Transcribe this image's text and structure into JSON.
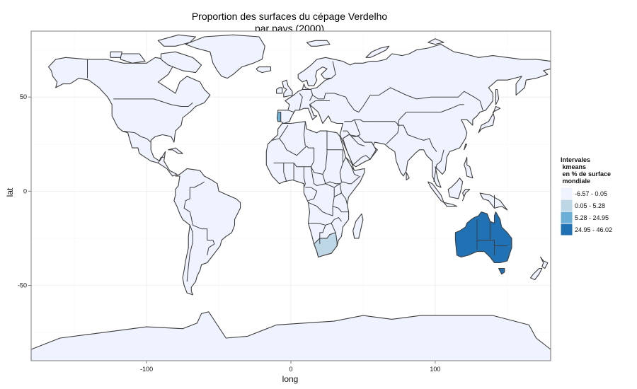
{
  "chart_data": {
    "type": "choropleth-map",
    "title_line1": "Proportion des surfaces du cépage Verdelho",
    "title_line2": "par pays (2000)",
    "xlabel": "long",
    "ylabel": "lat",
    "xlim": [
      -180,
      180
    ],
    "ylim": [
      -90,
      85
    ],
    "xticks": [
      -100,
      0,
      100
    ],
    "yticks": [
      -50,
      0,
      50
    ],
    "grid": true,
    "legend": {
      "position": "right",
      "title_lines": [
        "Intervales",
        " kmeans",
        " en % de surface",
        " mondiale"
      ],
      "classes": [
        {
          "label": "-6.57 - 0.05",
          "color": "#eff3ff"
        },
        {
          "label": "0.05 - 5.28",
          "color": "#bdd7e7"
        },
        {
          "label": "5.28 - 24.95",
          "color": "#6baed6"
        },
        {
          "label": "24.95 - 46.02",
          "color": "#2171b5"
        }
      ]
    },
    "highlighted_regions": [
      {
        "region": "Portugal",
        "class": 2
      },
      {
        "region": "South Africa",
        "class": 1
      },
      {
        "region": "Australia",
        "class": 3
      }
    ]
  }
}
